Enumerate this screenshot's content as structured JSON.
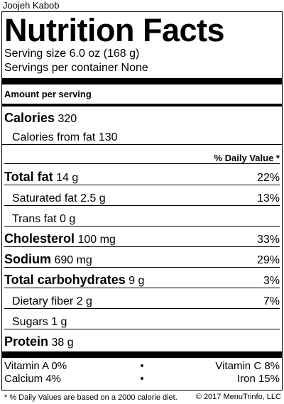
{
  "item_title": "Joojeh Kabob",
  "label": {
    "title": "Nutrition Facts",
    "serving_size": "Serving size 6.0 oz (168 g)",
    "servings_per_container": "Servings per container None",
    "amount_per_serving": "Amount per serving",
    "calories_label": "Calories",
    "calories_value": "320",
    "calories_from_fat": "Calories from fat 130",
    "daily_value_header": "% Daily Value *",
    "nutrients": [
      {
        "label": "Total fat",
        "amount": "14 g",
        "dv": "22%"
      },
      {
        "label": "Saturated fat",
        "amount": "2.5 g",
        "dv": "13%"
      },
      {
        "label": "Trans fat",
        "amount": "0 g",
        "dv": ""
      },
      {
        "label": "Cholesterol",
        "amount": "100 mg",
        "dv": "33%"
      },
      {
        "label": "Sodium",
        "amount": "690 mg",
        "dv": "29%"
      },
      {
        "label": "Total carbohydrates",
        "amount": "9 g",
        "dv": "3%"
      },
      {
        "label": "Dietary fiber",
        "amount": "2 g",
        "dv": "7%"
      },
      {
        "label": "Sugars",
        "amount": "1 g",
        "dv": ""
      },
      {
        "label": "Protein",
        "amount": "38 g",
        "dv": ""
      }
    ],
    "vitamins": [
      {
        "left": "Vitamin A 0%",
        "sep": "•",
        "right": "Vitamin C 8%"
      },
      {
        "left": "Calcium 4%",
        "sep": "•",
        "right": "Iron 15%"
      }
    ],
    "footnote": "* % Daily Values are based on a 2000 calorie diet."
  },
  "copyright": "© 2017 MenuTrinfo, LLC"
}
